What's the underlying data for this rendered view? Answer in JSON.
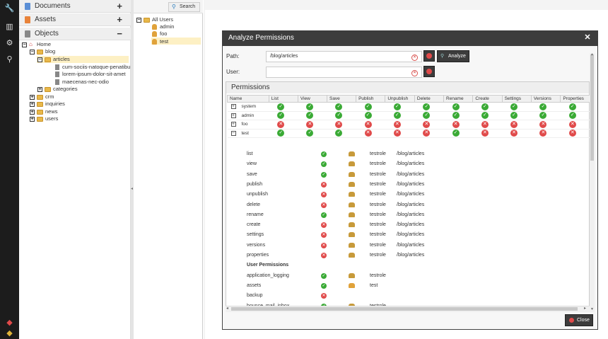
{
  "accordion": {
    "documents": "Documents",
    "assets": "Assets",
    "objects": "Objects"
  },
  "tree": {
    "home": "Home",
    "blog": "blog",
    "articles": "articles",
    "docs": [
      "cum-sociis-natoque-penatibu",
      "lorem-ipsum-dolor-sit-amet",
      "maecenas-nec-odio"
    ],
    "categories": "categories",
    "crm": "crm",
    "inquiries": "inquiries",
    "news": "news",
    "users": "users"
  },
  "users_panel": {
    "search_label": "Search",
    "all_users": "All Users",
    "list": [
      "admin",
      "foo",
      "test"
    ]
  },
  "dialog": {
    "title": "Analyze Permissions",
    "path_label": "Path:",
    "path_value": "/blog/articles",
    "user_label": "User:",
    "user_value": "",
    "analyze_label": "Analyze",
    "permissions_title": "Permissions",
    "close_label": "Close",
    "columns": [
      "Name",
      "List",
      "View",
      "Save",
      "Publish",
      "Unpublish",
      "Delete",
      "Rename",
      "Create",
      "Settings",
      "Versions",
      "Properties"
    ],
    "rows": [
      {
        "name": "system",
        "expander": "+",
        "values": [
          true,
          true,
          true,
          true,
          true,
          true,
          true,
          true,
          true,
          true,
          true
        ]
      },
      {
        "name": "admin",
        "expander": "+",
        "values": [
          true,
          true,
          true,
          true,
          true,
          true,
          true,
          true,
          true,
          true,
          true
        ]
      },
      {
        "name": "foo",
        "expander": "+",
        "values": [
          false,
          false,
          false,
          false,
          false,
          false,
          false,
          false,
          false,
          false,
          false
        ]
      },
      {
        "name": "test",
        "expander": "−",
        "values": [
          true,
          true,
          true,
          false,
          false,
          false,
          true,
          false,
          false,
          false,
          false
        ]
      }
    ],
    "details": [
      {
        "name": "list",
        "ok": true,
        "role": "testrole",
        "path": "/blog/articles"
      },
      {
        "name": "view",
        "ok": true,
        "role": "testrole",
        "path": "/blog/articles"
      },
      {
        "name": "save",
        "ok": true,
        "role": "testrole",
        "path": "/blog/articles"
      },
      {
        "name": "publish",
        "ok": false,
        "role": "testrole",
        "path": "/blog/articles"
      },
      {
        "name": "unpublish",
        "ok": false,
        "role": "testrole",
        "path": "/blog/articles"
      },
      {
        "name": "delete",
        "ok": false,
        "role": "testrole",
        "path": "/blog/articles"
      },
      {
        "name": "rename",
        "ok": true,
        "role": "testrole",
        "path": "/blog/articles"
      },
      {
        "name": "create",
        "ok": false,
        "role": "testrole",
        "path": "/blog/articles"
      },
      {
        "name": "settings",
        "ok": false,
        "role": "testrole",
        "path": "/blog/articles"
      },
      {
        "name": "versions",
        "ok": false,
        "role": "testrole",
        "path": "/blog/articles"
      },
      {
        "name": "properties",
        "ok": false,
        "role": "testrole",
        "path": "/blog/articles"
      }
    ],
    "user_permissions_heading": "User Permissions",
    "user_permissions": [
      {
        "name": "application_logging",
        "ok": true,
        "role": "testrole"
      },
      {
        "name": "assets",
        "ok": true,
        "role": "test"
      },
      {
        "name": "backup",
        "ok": false,
        "role": ""
      },
      {
        "name": "bounce_mail_inbox",
        "ok": true,
        "role": "testrole"
      }
    ]
  },
  "colors": {
    "toolbar": "#1c1c1c",
    "ok": "#3aaa35",
    "denied": "#e04a4a",
    "selection": "#fdf0c4",
    "dialog_header": "#3d3d3d"
  },
  "icons": [
    "wrench-icon",
    "chart-icon",
    "gear-icon",
    "search-icon",
    "notification-icon",
    "warning-icon"
  ]
}
